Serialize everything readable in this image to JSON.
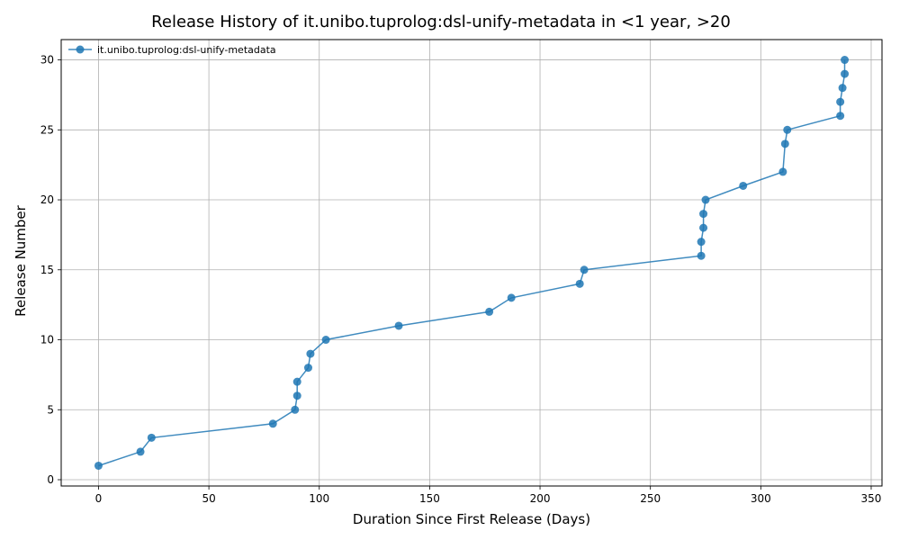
{
  "chart_data": {
    "type": "line",
    "title": "Release History of it.unibo.tuprolog:dsl-unify-metadata in <1 year, >20",
    "xlabel": "Duration Since First Release (Days)",
    "ylabel": "Release Number",
    "xlim": [
      -16.9,
      354.9
    ],
    "ylim": [
      -0.45,
      31.45
    ],
    "xticks": [
      0,
      50,
      100,
      150,
      200,
      250,
      300,
      350
    ],
    "yticks": [
      0,
      5,
      10,
      15,
      20,
      25,
      30
    ],
    "grid": true,
    "legend_position": "top-left",
    "series": [
      {
        "name": "it.unibo.tuprolog:dsl-unify-metadata",
        "color": "#1f77b4",
        "marker": "circle",
        "x": [
          0,
          19,
          24,
          79,
          89,
          90,
          90,
          95,
          96,
          103,
          136,
          177,
          187,
          218,
          220,
          273,
          273,
          274,
          274,
          275,
          292,
          310,
          311,
          312,
          336,
          336,
          337,
          338,
          338
        ],
        "y": [
          1,
          2,
          3,
          4,
          5,
          6,
          7,
          8,
          9,
          10,
          11,
          12,
          13,
          14,
          15,
          16,
          17,
          18,
          19,
          20,
          21,
          22,
          24,
          25,
          26,
          27,
          28,
          29,
          30
        ]
      }
    ]
  }
}
